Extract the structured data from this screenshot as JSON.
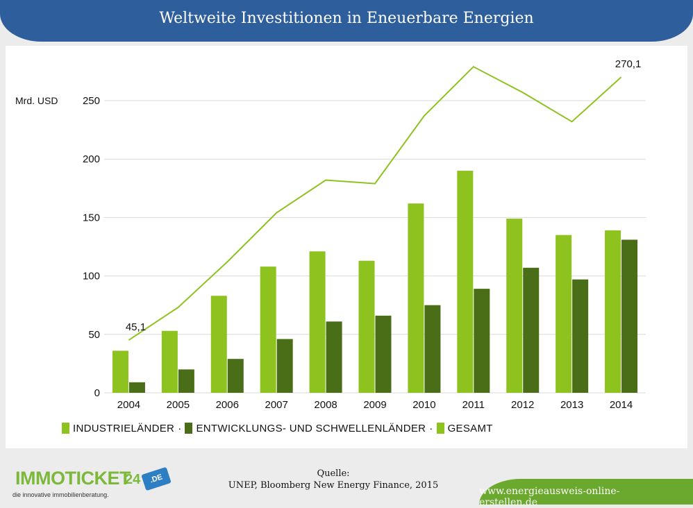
{
  "title": "Weltweite Investitionen in Eneuerbare Energien",
  "colors": {
    "header": "#2e5f9c",
    "industrie": "#8dc21f",
    "entwicklung": "#4a6e17",
    "gesamt": "#8dc21f",
    "footer_band": "#6aa82e"
  },
  "chart_data": {
    "type": "bar",
    "title": "Weltweite Investitionen in Eneuerbare Energien",
    "ylabel": "Mrd. USD",
    "xlabel": "",
    "ylim": [
      0,
      270
    ],
    "yticks": [
      0,
      50,
      100,
      150,
      200,
      250
    ],
    "ytick_labels": [
      "0",
      "50",
      "100",
      "150",
      "200",
      "250"
    ],
    "grid": true,
    "legend_position": "bottom-left",
    "categories": [
      "2004",
      "2005",
      "2006",
      "2007",
      "2008",
      "2009",
      "2010",
      "2011",
      "2012",
      "2013",
      "2014"
    ],
    "series": [
      {
        "name": "INDUSTRIELÄNDER",
        "type": "bar",
        "values": [
          36,
          53,
          83,
          108,
          121,
          113,
          162,
          190,
          149,
          135,
          139
        ]
      },
      {
        "name": "ENTWICKLUNGS- UND SCHWELLENLÄNDER",
        "type": "bar",
        "values": [
          9,
          20,
          29,
          46,
          61,
          66,
          75,
          89,
          107,
          97,
          131
        ]
      },
      {
        "name": "GESAMT",
        "type": "line",
        "values": [
          45.1,
          73,
          112,
          154,
          182,
          179,
          237,
          279,
          257,
          232,
          270.1
        ]
      }
    ],
    "annotations": [
      {
        "category": "2004",
        "series": "GESAMT",
        "text": "45,1"
      },
      {
        "category": "2014",
        "series": "GESAMT",
        "text": "270,1"
      }
    ]
  },
  "legend": {
    "items": [
      "INDUSTRIELÄNDER",
      "ENTWICKLUNGS- UND SCHWELLENLÄNDER",
      "GESAMT"
    ],
    "separator": "·"
  },
  "footer": {
    "logo_text": "IMMOTICKET",
    "logo_suffix": "24",
    "logo_badge": ".DE",
    "logo_tagline": "die innovative immobilienberatung.",
    "source_label": "Quelle:",
    "source_text": "UNEP, Bloomberg New Energy Finance, 2015",
    "url": "www.energieausweis-online-erstellen.de"
  }
}
